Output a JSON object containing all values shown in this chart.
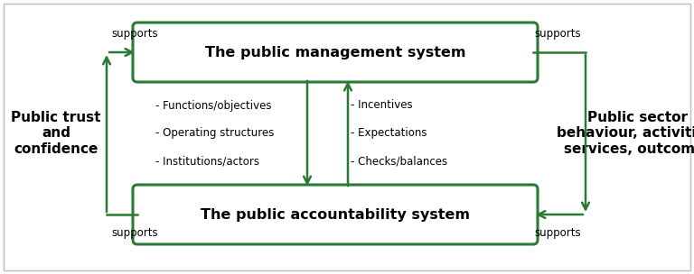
{
  "bg_color": "#ffffff",
  "green": "#2a7a35",
  "box_fill": "#ffffff",
  "box_top_label": "The public management system",
  "box_bottom_label": "The public accountability system",
  "left_label": "Public trust\nand\nconfidence",
  "right_label": "Public sector\nbehaviour, activities,\nservices, outcomes",
  "left_col_items": [
    "- Functions/objectives",
    "- Operating structures",
    "- Institutions/actors"
  ],
  "right_col_items": [
    "- Incentives",
    "- Expectations",
    "- Checks/balances"
  ],
  "supports_label": "supports",
  "title_fontsize": 11.5,
  "label_fontsize": 8.5,
  "side_fontsize": 11,
  "supports_fontsize": 8.5,
  "border_color": "#bbbbbb"
}
